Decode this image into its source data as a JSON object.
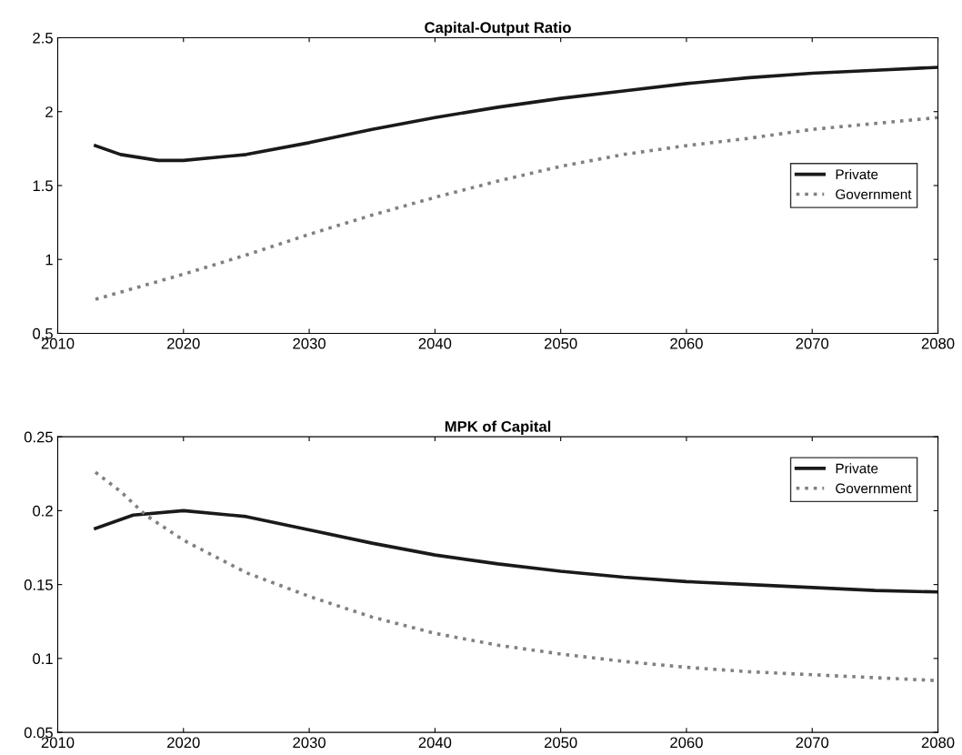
{
  "chart_data": [
    {
      "type": "line",
      "title": "Capital-Output Ratio",
      "xlim": [
        2010,
        2080
      ],
      "xticks": [
        2010,
        2020,
        2030,
        2040,
        2050,
        2060,
        2070,
        2080
      ],
      "ylim": [
        0.5,
        2.5
      ],
      "yticks": [
        0.5,
        1,
        1.5,
        2,
        2.5
      ],
      "grid": false,
      "legend": "right",
      "series": [
        {
          "name": "Private",
          "color": "#1a1a1a",
          "line_style": "solid",
          "x": [
            2013,
            2015,
            2018,
            2020,
            2025,
            2030,
            2035,
            2040,
            2045,
            2050,
            2055,
            2060,
            2065,
            2070,
            2075,
            2080
          ],
          "values": [
            1.77,
            1.71,
            1.67,
            1.67,
            1.71,
            1.79,
            1.88,
            1.96,
            2.03,
            2.09,
            2.14,
            2.19,
            2.23,
            2.26,
            2.28,
            2.3
          ]
        },
        {
          "name": "Government",
          "color": "#808080",
          "line_style": "dotted",
          "x": [
            2013,
            2020,
            2025,
            2030,
            2035,
            2040,
            2045,
            2050,
            2055,
            2060,
            2065,
            2070,
            2075,
            2080
          ],
          "values": [
            0.73,
            0.9,
            1.03,
            1.17,
            1.3,
            1.42,
            1.53,
            1.63,
            1.71,
            1.77,
            1.82,
            1.88,
            1.92,
            1.96
          ]
        }
      ]
    },
    {
      "type": "line",
      "title": "MPK of Capital",
      "xlim": [
        2010,
        2080
      ],
      "xticks": [
        2010,
        2020,
        2030,
        2040,
        2050,
        2060,
        2070,
        2080
      ],
      "ylim": [
        0.05,
        0.25
      ],
      "yticks": [
        0.05,
        0.1,
        0.15,
        0.2,
        0.25
      ],
      "grid": false,
      "legend": "top right",
      "series": [
        {
          "name": "Private",
          "color": "#1a1a1a",
          "line_style": "solid",
          "x": [
            2013,
            2016,
            2020,
            2025,
            2030,
            2035,
            2040,
            2045,
            2050,
            2055,
            2060,
            2065,
            2070,
            2075,
            2080
          ],
          "values": [
            0.188,
            0.197,
            0.2,
            0.196,
            0.187,
            0.178,
            0.17,
            0.164,
            0.159,
            0.155,
            0.152,
            0.15,
            0.148,
            0.146,
            0.145
          ]
        },
        {
          "name": "Government",
          "color": "#808080",
          "line_style": "dotted",
          "x": [
            2013,
            2015,
            2017,
            2020,
            2025,
            2030,
            2035,
            2040,
            2045,
            2050,
            2055,
            2060,
            2065,
            2070,
            2075,
            2080
          ],
          "values": [
            0.226,
            0.213,
            0.197,
            0.18,
            0.158,
            0.142,
            0.128,
            0.117,
            0.109,
            0.103,
            0.098,
            0.094,
            0.091,
            0.089,
            0.087,
            0.085
          ]
        }
      ]
    }
  ]
}
